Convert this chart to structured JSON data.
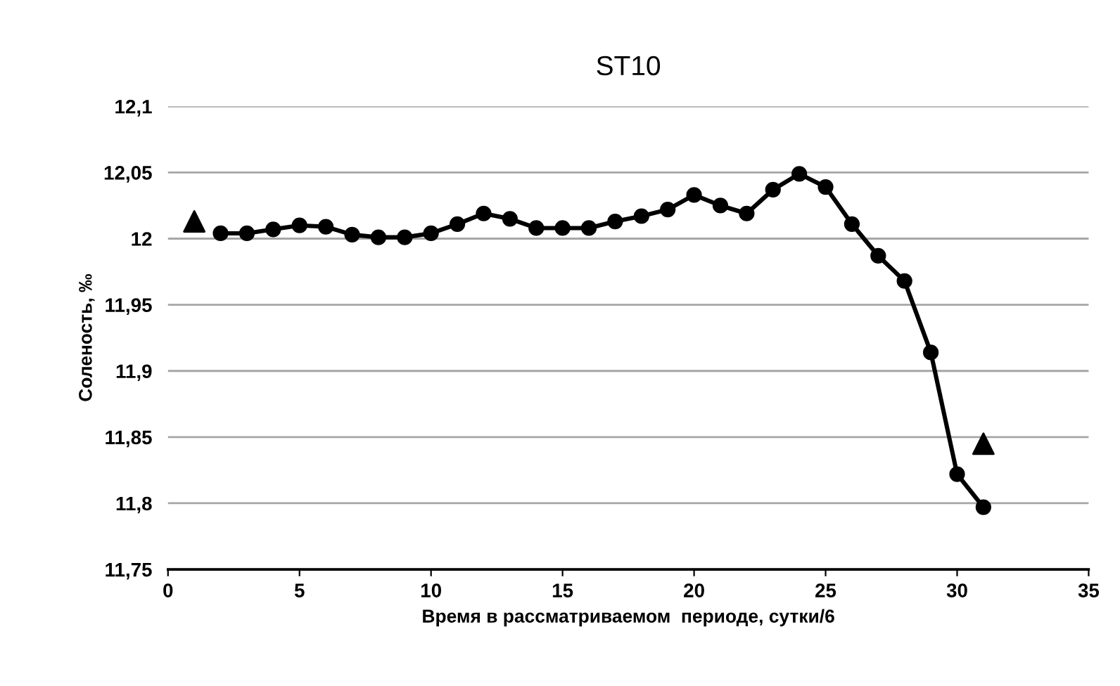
{
  "chart_data": {
    "type": "line",
    "title": "ST10",
    "xlabel": "Время в рассматриваемом  периоде, сутки/6",
    "ylabel": "Соленость, ‰",
    "series": [
      {
        "color": "#000000",
        "marker": "circle",
        "x": [
          2,
          3,
          4,
          5,
          6,
          7,
          8,
          9,
          10,
          11,
          12,
          13,
          14,
          15,
          16,
          17,
          18,
          19,
          20,
          21,
          22,
          23,
          24,
          25,
          26,
          27,
          28,
          29,
          30,
          31
        ],
        "values": [
          12.004,
          12.004,
          12.007,
          12.01,
          12.009,
          12.003,
          12.001,
          12.001,
          12.004,
          12.011,
          12.019,
          12.015,
          12.008,
          12.008,
          12.008,
          12.013,
          12.017,
          12.022,
          12.033,
          12.025,
          12.019,
          12.037,
          12.049,
          12.039,
          12.011,
          11.987,
          11.968,
          11.914,
          11.822,
          11.797
        ]
      },
      {
        "type": "scatter",
        "color": "#000000",
        "marker": "triangle",
        "x": [
          1,
          31
        ],
        "values": [
          12.013,
          11.845
        ]
      }
    ],
    "xlim": [
      0,
      35
    ],
    "xticks": [
      0,
      5,
      10,
      15,
      20,
      25,
      30,
      35
    ],
    "ylim": [
      11.75,
      12.1
    ],
    "yticks": [
      {
        "value": 11.75,
        "label": "11,75"
      },
      {
        "value": 11.8,
        "label": "11,8"
      },
      {
        "value": 11.85,
        "label": "11,85"
      },
      {
        "value": 11.9,
        "label": "11,9"
      },
      {
        "value": 11.95,
        "label": "11,95"
      },
      {
        "value": 12,
        "label": "12"
      },
      {
        "value": 12.05,
        "label": "12,05"
      },
      {
        "value": 12.1,
        "label": "12,1"
      }
    ],
    "grid": "y",
    "legend": false
  }
}
